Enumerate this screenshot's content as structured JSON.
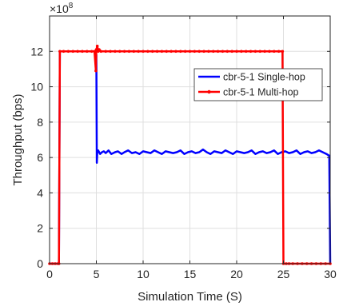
{
  "chart_data": {
    "type": "line",
    "title": "",
    "xlabel": "Simulation Time (S)",
    "ylabel": "Throughput (bps)",
    "y_exponent_base": "×10",
    "y_exponent_power": "8",
    "xlim": [
      0,
      30
    ],
    "ylim": [
      0,
      14
    ],
    "y_scale": 100000000,
    "x_ticks": [
      0,
      5,
      10,
      15,
      20,
      25,
      30
    ],
    "y_ticks": [
      0,
      2,
      4,
      6,
      8,
      10,
      12
    ],
    "grid": true,
    "legend_position": "right",
    "series": [
      {
        "name": "cbr-5-1 Single-hop",
        "color": "#0000ff",
        "marker": "none",
        "description": "0 until t=1, ~12 until t=5, drops to ~6.3 after t=5, ends at t=30",
        "x": [
          0,
          1.0,
          1.1,
          2,
          3,
          4,
          4.9,
          5.0,
          5.05,
          5.1,
          5.2,
          5.4,
          5.6,
          5.8,
          6.0,
          6.3,
          6.6,
          7.0,
          7.3,
          7.7,
          8.0,
          8.4,
          8.8,
          9.2,
          9.6,
          10.0,
          10.4,
          10.8,
          11.2,
          11.6,
          12.0,
          12.4,
          12.8,
          13.2,
          13.6,
          14.0,
          14.4,
          14.8,
          15.2,
          15.6,
          16.0,
          16.4,
          16.8,
          17.2,
          17.6,
          18.0,
          18.4,
          18.8,
          19.2,
          19.6,
          20.0,
          20.4,
          20.8,
          21.2,
          21.6,
          22.0,
          22.4,
          22.8,
          23.2,
          23.6,
          24.0,
          24.4,
          24.8,
          25.2,
          25.6,
          26.0,
          26.4,
          26.8,
          27.2,
          27.6,
          28.0,
          28.4,
          28.8,
          29.2,
          29.6,
          29.9,
          30.0
        ],
        "y": [
          0,
          0,
          12,
          12,
          12,
          12,
          12,
          11.8,
          5.7,
          6.3,
          6.4,
          6.2,
          6.3,
          6.35,
          6.25,
          6.4,
          6.2,
          6.3,
          6.35,
          6.2,
          6.3,
          6.4,
          6.25,
          6.3,
          6.2,
          6.35,
          6.3,
          6.25,
          6.4,
          6.3,
          6.2,
          6.35,
          6.3,
          6.25,
          6.3,
          6.4,
          6.2,
          6.3,
          6.35,
          6.25,
          6.3,
          6.45,
          6.3,
          6.2,
          6.35,
          6.3,
          6.25,
          6.4,
          6.3,
          6.2,
          6.35,
          6.3,
          6.25,
          6.3,
          6.4,
          6.2,
          6.3,
          6.35,
          6.25,
          6.3,
          6.4,
          6.2,
          6.3,
          6.35,
          6.25,
          6.3,
          6.4,
          6.2,
          6.3,
          6.35,
          6.25,
          6.3,
          6.4,
          6.3,
          6.2,
          6.1,
          0
        ]
      },
      {
        "name": "cbr-5-1 Multi-hop",
        "color": "#ff0000",
        "marker": "dot",
        "description": "0 until t=1, ~12 until t=25 (spike ~12.3 at t=5.1, dip ~10.9 at t=4.95), 0 after t=25",
        "x": [
          0,
          0.3,
          0.6,
          0.9,
          1.0,
          1.1,
          1.5,
          2.0,
          2.5,
          3.0,
          3.5,
          4.0,
          4.5,
          4.8,
          4.95,
          5.0,
          5.1,
          5.2,
          5.3,
          5.5,
          6.0,
          6.5,
          7.0,
          7.5,
          8.0,
          8.5,
          9.0,
          9.5,
          10.0,
          10.5,
          11.0,
          11.5,
          12.0,
          12.5,
          13.0,
          13.5,
          14.0,
          14.5,
          15.0,
          15.5,
          16.0,
          16.5,
          17.0,
          17.5,
          18.0,
          18.5,
          19.0,
          19.5,
          20.0,
          20.5,
          21.0,
          21.5,
          22.0,
          22.5,
          23.0,
          23.5,
          24.0,
          24.5,
          24.9,
          25.0,
          25.3,
          25.6,
          26.0,
          26.5,
          27.0,
          27.5,
          28.0,
          28.5,
          29.0,
          29.5,
          30.0
        ],
        "y": [
          0,
          0,
          0,
          0,
          0,
          12,
          12,
          12,
          12,
          12,
          12,
          12,
          12,
          12,
          10.9,
          12.1,
          12.3,
          12.0,
          12.1,
          12.0,
          12.0,
          12.0,
          12.0,
          12.0,
          12.0,
          12.0,
          12.0,
          12.0,
          12.0,
          12.0,
          12.0,
          12.0,
          12.0,
          12.0,
          12.0,
          12.0,
          12.0,
          12.0,
          12.0,
          12.0,
          12.0,
          12.0,
          12.0,
          12.0,
          12.0,
          12.0,
          12.0,
          12.0,
          12.0,
          12.0,
          12.0,
          12.0,
          12.0,
          12.0,
          12.0,
          12.0,
          12.0,
          12.0,
          12.0,
          0,
          0,
          0,
          0,
          0,
          0,
          0,
          0,
          0,
          0,
          0,
          0
        ]
      }
    ]
  }
}
